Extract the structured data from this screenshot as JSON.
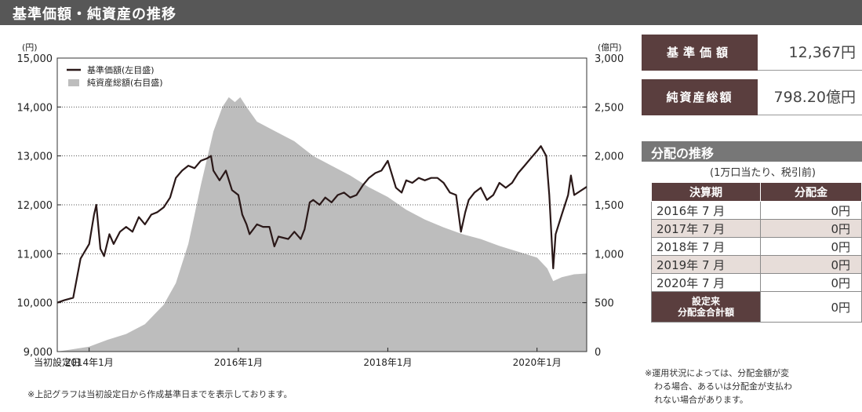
{
  "header": {
    "title": "基準価額・純資産の推移"
  },
  "chart_data": {
    "type": "line+area",
    "left_axis": {
      "unit": "(円)",
      "ylim": [
        9000,
        15000
      ],
      "ticks": [
        "9,000",
        "10,000",
        "11,000",
        "12,000",
        "13,000",
        "14,000",
        "15,000"
      ]
    },
    "right_axis": {
      "unit": "(億円)",
      "ylim": [
        0,
        3000
      ],
      "ticks": [
        "0",
        "500",
        "1,000",
        "1,500",
        "2,000",
        "2,500",
        "3,000"
      ]
    },
    "x_ticks": [
      "当初設定日",
      "2014年1月",
      "2016年1月",
      "2018年1月",
      "2020年1月"
    ],
    "x_tick_dates": [
      "2013-07-29",
      "2014-01-01",
      "2016-01-01",
      "2018-01-01",
      "2020-01-01"
    ],
    "xlim": [
      "2013-07-29",
      "2020-08-31"
    ],
    "legend": {
      "position": "top-left",
      "line_label": "基準価額(左目盛)",
      "area_label": "純資産総額(右目盛)"
    },
    "series": [
      {
        "name": "基準価額(左目盛)",
        "type": "line",
        "axis": "left",
        "color": "#2a1818",
        "points": [
          [
            "2013-07-29",
            10000
          ],
          [
            "2013-09-01",
            10050
          ],
          [
            "2013-10-15",
            10100
          ],
          [
            "2013-11-20",
            10900
          ],
          [
            "2014-01-01",
            11200
          ],
          [
            "2014-01-25",
            11800
          ],
          [
            "2014-02-05",
            12000
          ],
          [
            "2014-02-25",
            11100
          ],
          [
            "2014-03-15",
            10950
          ],
          [
            "2014-04-10",
            11400
          ],
          [
            "2014-05-01",
            11200
          ],
          [
            "2014-06-01",
            11450
          ],
          [
            "2014-07-01",
            11550
          ],
          [
            "2014-08-01",
            11450
          ],
          [
            "2014-09-01",
            11750
          ],
          [
            "2014-10-01",
            11600
          ],
          [
            "2014-11-01",
            11800
          ],
          [
            "2014-12-01",
            11850
          ],
          [
            "2015-01-01",
            11950
          ],
          [
            "2015-02-01",
            12150
          ],
          [
            "2015-03-01",
            12550
          ],
          [
            "2015-04-01",
            12700
          ],
          [
            "2015-05-01",
            12800
          ],
          [
            "2015-06-01",
            12750
          ],
          [
            "2015-07-01",
            12900
          ],
          [
            "2015-08-01",
            12950
          ],
          [
            "2015-08-20",
            13000
          ],
          [
            "2015-09-01",
            12700
          ],
          [
            "2015-10-01",
            12500
          ],
          [
            "2015-11-01",
            12700
          ],
          [
            "2015-12-01",
            12300
          ],
          [
            "2016-01-01",
            12200
          ],
          [
            "2016-01-20",
            11800
          ],
          [
            "2016-02-10",
            11600
          ],
          [
            "2016-02-25",
            11400
          ],
          [
            "2016-04-01",
            11600
          ],
          [
            "2016-05-01",
            11550
          ],
          [
            "2016-06-01",
            11550
          ],
          [
            "2016-06-25",
            11150
          ],
          [
            "2016-07-15",
            11350
          ],
          [
            "2016-09-01",
            11300
          ],
          [
            "2016-10-01",
            11450
          ],
          [
            "2016-11-01",
            11300
          ],
          [
            "2016-11-20",
            11500
          ],
          [
            "2016-12-15",
            12050
          ],
          [
            "2017-01-01",
            12100
          ],
          [
            "2017-02-01",
            12000
          ],
          [
            "2017-03-01",
            12150
          ],
          [
            "2017-04-01",
            12050
          ],
          [
            "2017-05-01",
            12200
          ],
          [
            "2017-06-01",
            12250
          ],
          [
            "2017-07-01",
            12150
          ],
          [
            "2017-08-01",
            12200
          ],
          [
            "2017-09-01",
            12400
          ],
          [
            "2017-10-01",
            12550
          ],
          [
            "2017-11-01",
            12650
          ],
          [
            "2017-12-01",
            12700
          ],
          [
            "2018-01-01",
            12900
          ],
          [
            "2018-02-10",
            12350
          ],
          [
            "2018-03-10",
            12250
          ],
          [
            "2018-04-01",
            12500
          ],
          [
            "2018-05-01",
            12450
          ],
          [
            "2018-06-01",
            12550
          ],
          [
            "2018-07-01",
            12500
          ],
          [
            "2018-08-01",
            12550
          ],
          [
            "2018-09-01",
            12550
          ],
          [
            "2018-10-01",
            12450
          ],
          [
            "2018-11-01",
            12250
          ],
          [
            "2018-12-01",
            12200
          ],
          [
            "2018-12-25",
            11450
          ],
          [
            "2019-01-15",
            11850
          ],
          [
            "2019-02-01",
            12100
          ],
          [
            "2019-03-01",
            12250
          ],
          [
            "2019-04-01",
            12350
          ],
          [
            "2019-05-01",
            12100
          ],
          [
            "2019-06-01",
            12200
          ],
          [
            "2019-07-01",
            12450
          ],
          [
            "2019-08-01",
            12350
          ],
          [
            "2019-09-01",
            12450
          ],
          [
            "2019-10-01",
            12650
          ],
          [
            "2019-11-01",
            12800
          ],
          [
            "2019-12-01",
            12950
          ],
          [
            "2020-01-01",
            13100
          ],
          [
            "2020-01-20",
            13200
          ],
          [
            "2020-02-15",
            13000
          ],
          [
            "2020-03-01",
            12200
          ],
          [
            "2020-03-20",
            10700
          ],
          [
            "2020-04-01",
            11400
          ],
          [
            "2020-05-01",
            11800
          ],
          [
            "2020-06-01",
            12200
          ],
          [
            "2020-06-15",
            12600
          ],
          [
            "2020-07-01",
            12200
          ],
          [
            "2020-08-31",
            12367
          ]
        ]
      },
      {
        "name": "純資産総額(右目盛)",
        "type": "area",
        "axis": "right",
        "color": "#bdbdbd",
        "points": [
          [
            "2013-07-29",
            0
          ],
          [
            "2013-10-01",
            20
          ],
          [
            "2014-01-01",
            50
          ],
          [
            "2014-04-01",
            120
          ],
          [
            "2014-07-01",
            180
          ],
          [
            "2014-10-01",
            280
          ],
          [
            "2015-01-01",
            480
          ],
          [
            "2015-03-01",
            700
          ],
          [
            "2015-05-01",
            1100
          ],
          [
            "2015-07-01",
            1700
          ],
          [
            "2015-09-01",
            2250
          ],
          [
            "2015-10-15",
            2500
          ],
          [
            "2015-11-15",
            2600
          ],
          [
            "2015-12-15",
            2550
          ],
          [
            "2016-01-10",
            2600
          ],
          [
            "2016-02-10",
            2500
          ],
          [
            "2016-04-01",
            2350
          ],
          [
            "2016-07-01",
            2250
          ],
          [
            "2016-10-01",
            2150
          ],
          [
            "2017-01-01",
            2000
          ],
          [
            "2017-04-01",
            1900
          ],
          [
            "2017-07-01",
            1800
          ],
          [
            "2017-10-01",
            1680
          ],
          [
            "2018-01-01",
            1580
          ],
          [
            "2018-04-01",
            1450
          ],
          [
            "2018-07-01",
            1350
          ],
          [
            "2018-10-01",
            1270
          ],
          [
            "2019-01-01",
            1200
          ],
          [
            "2019-04-01",
            1150
          ],
          [
            "2019-07-01",
            1080
          ],
          [
            "2019-10-01",
            1020
          ],
          [
            "2020-01-01",
            960
          ],
          [
            "2020-02-20",
            850
          ],
          [
            "2020-03-20",
            720
          ],
          [
            "2020-05-01",
            760
          ],
          [
            "2020-07-01",
            790
          ],
          [
            "2020-08-31",
            798
          ]
        ]
      }
    ]
  },
  "kpis": [
    {
      "label": "基準価額",
      "value": "12,367円"
    },
    {
      "label": "純資産総額",
      "value": "798.20億円"
    }
  ],
  "distribution": {
    "title": "分配の推移",
    "note": "(1万口当たり、税引前)",
    "headers": [
      "決算期",
      "分配金"
    ],
    "rows": [
      {
        "period": "2016年 7 月",
        "amount": "0円"
      },
      {
        "period": "2017年 7 月",
        "amount": "0円"
      },
      {
        "period": "2018年 7 月",
        "amount": "0円"
      },
      {
        "period": "2019年 7 月",
        "amount": "0円"
      },
      {
        "period": "2020年 7 月",
        "amount": "0円"
      }
    ],
    "total_label_1": "設定来",
    "total_label_2": "分配金合計額",
    "total_amount": "0円",
    "footnote_lines": [
      "※運用状況によっては、分配金額が変",
      "わる場合、あるいは分配金が支払わ",
      "れない場合があります。"
    ]
  },
  "footnote": "※上記グラフは当初設定日から作成基準日までを表示しております。"
}
